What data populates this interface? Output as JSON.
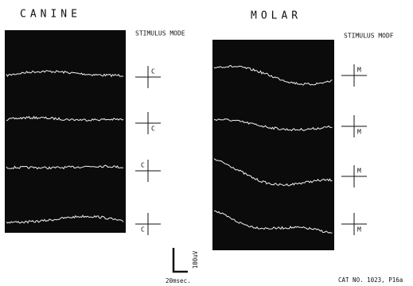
{
  "panels": [
    {
      "title": "CANINE",
      "mode_label": "STIMULUS MODE",
      "markers": [
        "C",
        "C",
        "C",
        "C"
      ]
    },
    {
      "title": "MOLAR",
      "mode_label": "STIMULUS MODF",
      "markers": [
        "M",
        "M",
        "M",
        "M"
      ]
    }
  ],
  "scale_bar": {
    "voltage": "100uV",
    "time": "20msec."
  },
  "footer": "CAT NO. 1023, P16a"
}
